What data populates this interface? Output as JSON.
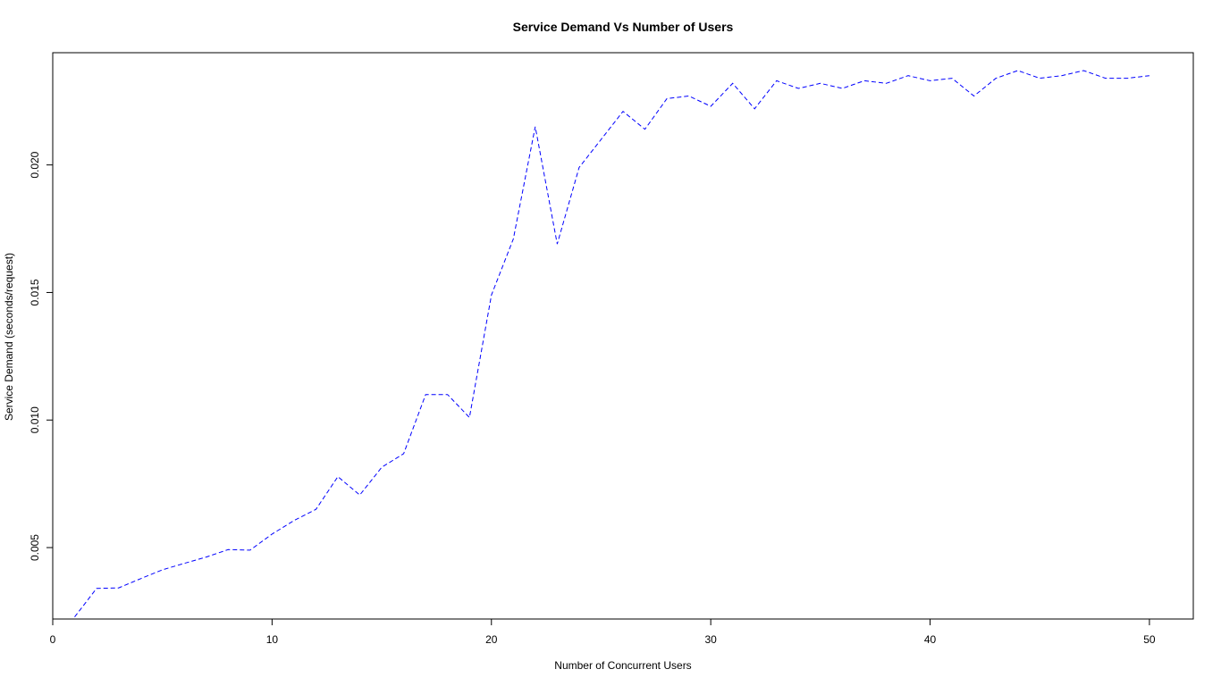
{
  "chart_data": {
    "type": "line",
    "title": "Service Demand Vs Number of Users",
    "xlabel": "Number of Concurrent Users",
    "ylabel": "Service Demand (seconds/request)",
    "xlim": [
      0,
      52
    ],
    "ylim": [
      0.0022,
      0.0244
    ],
    "x_ticks": [
      0,
      10,
      20,
      30,
      40,
      50
    ],
    "y_ticks": [
      0.005,
      0.01,
      0.015,
      0.02
    ],
    "x_tick_labels": [
      "0",
      "10",
      "20",
      "30",
      "40",
      "50"
    ],
    "y_tick_labels": [
      "0.005",
      "0.010",
      "0.015",
      "0.020"
    ],
    "grid": false,
    "legend": "none",
    "series": [
      {
        "color": "#0000ff",
        "x": [
          1,
          2,
          3,
          4,
          5,
          6,
          7,
          8,
          9,
          10,
          11,
          12,
          13,
          14,
          15,
          16,
          17,
          18,
          19,
          20,
          21,
          22,
          23,
          24,
          25,
          26,
          27,
          28,
          29,
          30,
          31,
          32,
          33,
          34,
          35,
          36,
          37,
          38,
          39,
          40,
          41,
          42,
          43,
          44,
          45,
          46,
          47,
          48,
          49,
          50
        ],
        "y": [
          0.00228,
          0.0034,
          0.00342,
          0.00378,
          0.00413,
          0.00438,
          0.00463,
          0.00492,
          0.0049,
          0.00553,
          0.00606,
          0.0065,
          0.00778,
          0.00706,
          0.00815,
          0.00868,
          0.011,
          0.011,
          0.0101,
          0.0149,
          0.0171,
          0.0215,
          0.0169,
          0.0199,
          0.021,
          0.0221,
          0.0214,
          0.0226,
          0.0227,
          0.0223,
          0.0232,
          0.0222,
          0.0233,
          0.023,
          0.0232,
          0.023,
          0.0233,
          0.0232,
          0.0235,
          0.0233,
          0.0234,
          0.0227,
          0.0234,
          0.0237,
          0.0234,
          0.0235,
          0.0237,
          0.0234,
          0.0234,
          0.0235
        ]
      }
    ]
  }
}
